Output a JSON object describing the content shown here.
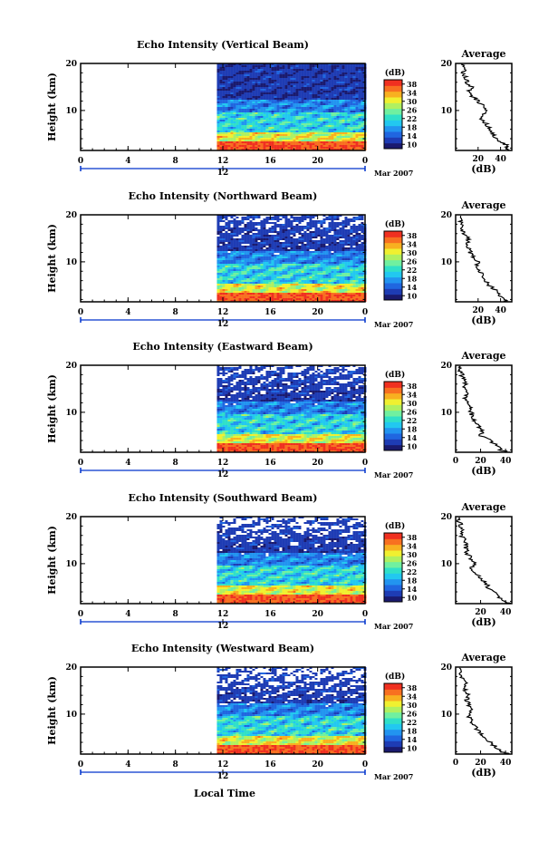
{
  "chart_data": {
    "type": "heatmap",
    "x_axis_label": "Local Time",
    "date_label": "Mar 2007",
    "date_marker": "12",
    "time_ticks": [
      "0",
      "4",
      "8",
      "12",
      "16",
      "20",
      "0"
    ],
    "time_range_hours": [
      0,
      24
    ],
    "data_start_hour": 11.5,
    "height_label": "Height (km)",
    "height_ticks": [
      "20",
      "10"
    ],
    "height_range_km": [
      1.5,
      20
    ],
    "colorbar_unit": "(dB)",
    "colorbar_ticks": [
      "38",
      "34",
      "30",
      "26",
      "22",
      "18",
      "14",
      "10"
    ],
    "colorbar_range_db": [
      8,
      40
    ],
    "colorscale": [
      "#1a1a6e",
      "#1e3cb4",
      "#2066e0",
      "#2294f0",
      "#22c8f0",
      "#30e0c8",
      "#70f0a0",
      "#b0f060",
      "#f0f030",
      "#f8b020",
      "#f87020",
      "#f03020"
    ],
    "profile_title": "Average",
    "profile_xlabel": "(dB)",
    "panels": [
      {
        "title": "Echo Intensity (Vertical Beam)",
        "profile_ticks": [
          "20",
          "40"
        ],
        "profile_xlim": [
          0,
          50
        ],
        "avg_profile": [
          [
            48,
            1.6
          ],
          [
            44,
            2
          ],
          [
            46,
            2.6
          ],
          [
            40,
            3.2
          ],
          [
            36,
            4
          ],
          [
            33,
            5
          ],
          [
            30,
            6
          ],
          [
            28,
            7
          ],
          [
            23,
            8
          ],
          [
            25,
            9
          ],
          [
            28,
            10
          ],
          [
            24,
            11
          ],
          [
            20,
            12
          ],
          [
            15,
            13
          ],
          [
            12,
            14
          ],
          [
            14,
            15
          ],
          [
            10,
            16
          ],
          [
            9,
            17
          ],
          [
            6,
            18
          ],
          [
            8,
            19
          ],
          [
            5,
            20
          ]
        ]
      },
      {
        "title": "Echo Intensity (Northward Beam)",
        "profile_ticks": [
          "20",
          "40"
        ],
        "profile_xlim": [
          0,
          50
        ],
        "avg_profile": [
          [
            46,
            1.6
          ],
          [
            42,
            2
          ],
          [
            38,
            3
          ],
          [
            35,
            4
          ],
          [
            30,
            5
          ],
          [
            27,
            6
          ],
          [
            24,
            7
          ],
          [
            22,
            8
          ],
          [
            18,
            9
          ],
          [
            20,
            10
          ],
          [
            16,
            11
          ],
          [
            13,
            12
          ],
          [
            12,
            13
          ],
          [
            10,
            14
          ],
          [
            12,
            15
          ],
          [
            8,
            16
          ],
          [
            6,
            17
          ],
          [
            5,
            18
          ],
          [
            4,
            19
          ],
          [
            3,
            20
          ]
        ]
      },
      {
        "title": "Echo Intensity (Eastward Beam)",
        "profile_ticks": [
          "0",
          "20",
          "40"
        ],
        "profile_xlim": [
          0,
          45
        ],
        "avg_profile": [
          [
            42,
            1.6
          ],
          [
            36,
            2
          ],
          [
            32,
            3
          ],
          [
            28,
            4
          ],
          [
            20,
            5
          ],
          [
            22,
            6
          ],
          [
            18,
            7
          ],
          [
            16,
            8
          ],
          [
            14,
            9
          ],
          [
            12,
            10
          ],
          [
            13,
            11
          ],
          [
            10,
            12
          ],
          [
            8,
            13
          ],
          [
            9,
            14
          ],
          [
            7,
            15
          ],
          [
            8,
            16
          ],
          [
            6,
            17
          ],
          [
            5,
            18
          ],
          [
            3,
            19
          ],
          [
            2,
            20
          ]
        ]
      },
      {
        "title": "Echo Intensity (Southward Beam)",
        "profile_ticks": [
          "20",
          "40"
        ],
        "profile_xlim": [
          0,
          45
        ],
        "avg_profile": [
          [
            44,
            1.6
          ],
          [
            38,
            2
          ],
          [
            34,
            3
          ],
          [
            30,
            4
          ],
          [
            26,
            5
          ],
          [
            24,
            6
          ],
          [
            20,
            7
          ],
          [
            16,
            8
          ],
          [
            12,
            9
          ],
          [
            16,
            10
          ],
          [
            12,
            11
          ],
          [
            10,
            12
          ],
          [
            8,
            13
          ],
          [
            9,
            14
          ],
          [
            7,
            15
          ],
          [
            5,
            16
          ],
          [
            6,
            17
          ],
          [
            4,
            18
          ],
          [
            3,
            19
          ],
          [
            2,
            20
          ]
        ]
      },
      {
        "title": "Echo Intensity (Westward Beam)",
        "profile_ticks": [
          "0",
          "20",
          "40"
        ],
        "profile_xlim": [
          0,
          45
        ],
        "avg_profile": [
          [
            42,
            1.6
          ],
          [
            36,
            2
          ],
          [
            32,
            3
          ],
          [
            28,
            4
          ],
          [
            22,
            5
          ],
          [
            20,
            6
          ],
          [
            16,
            7
          ],
          [
            14,
            8
          ],
          [
            12,
            9
          ],
          [
            10,
            10
          ],
          [
            12,
            11
          ],
          [
            10,
            12
          ],
          [
            9,
            13
          ],
          [
            10,
            14
          ],
          [
            8,
            15
          ],
          [
            9,
            16
          ],
          [
            7,
            17
          ],
          [
            5,
            18
          ],
          [
            3,
            19
          ],
          [
            2,
            20
          ]
        ]
      }
    ]
  }
}
